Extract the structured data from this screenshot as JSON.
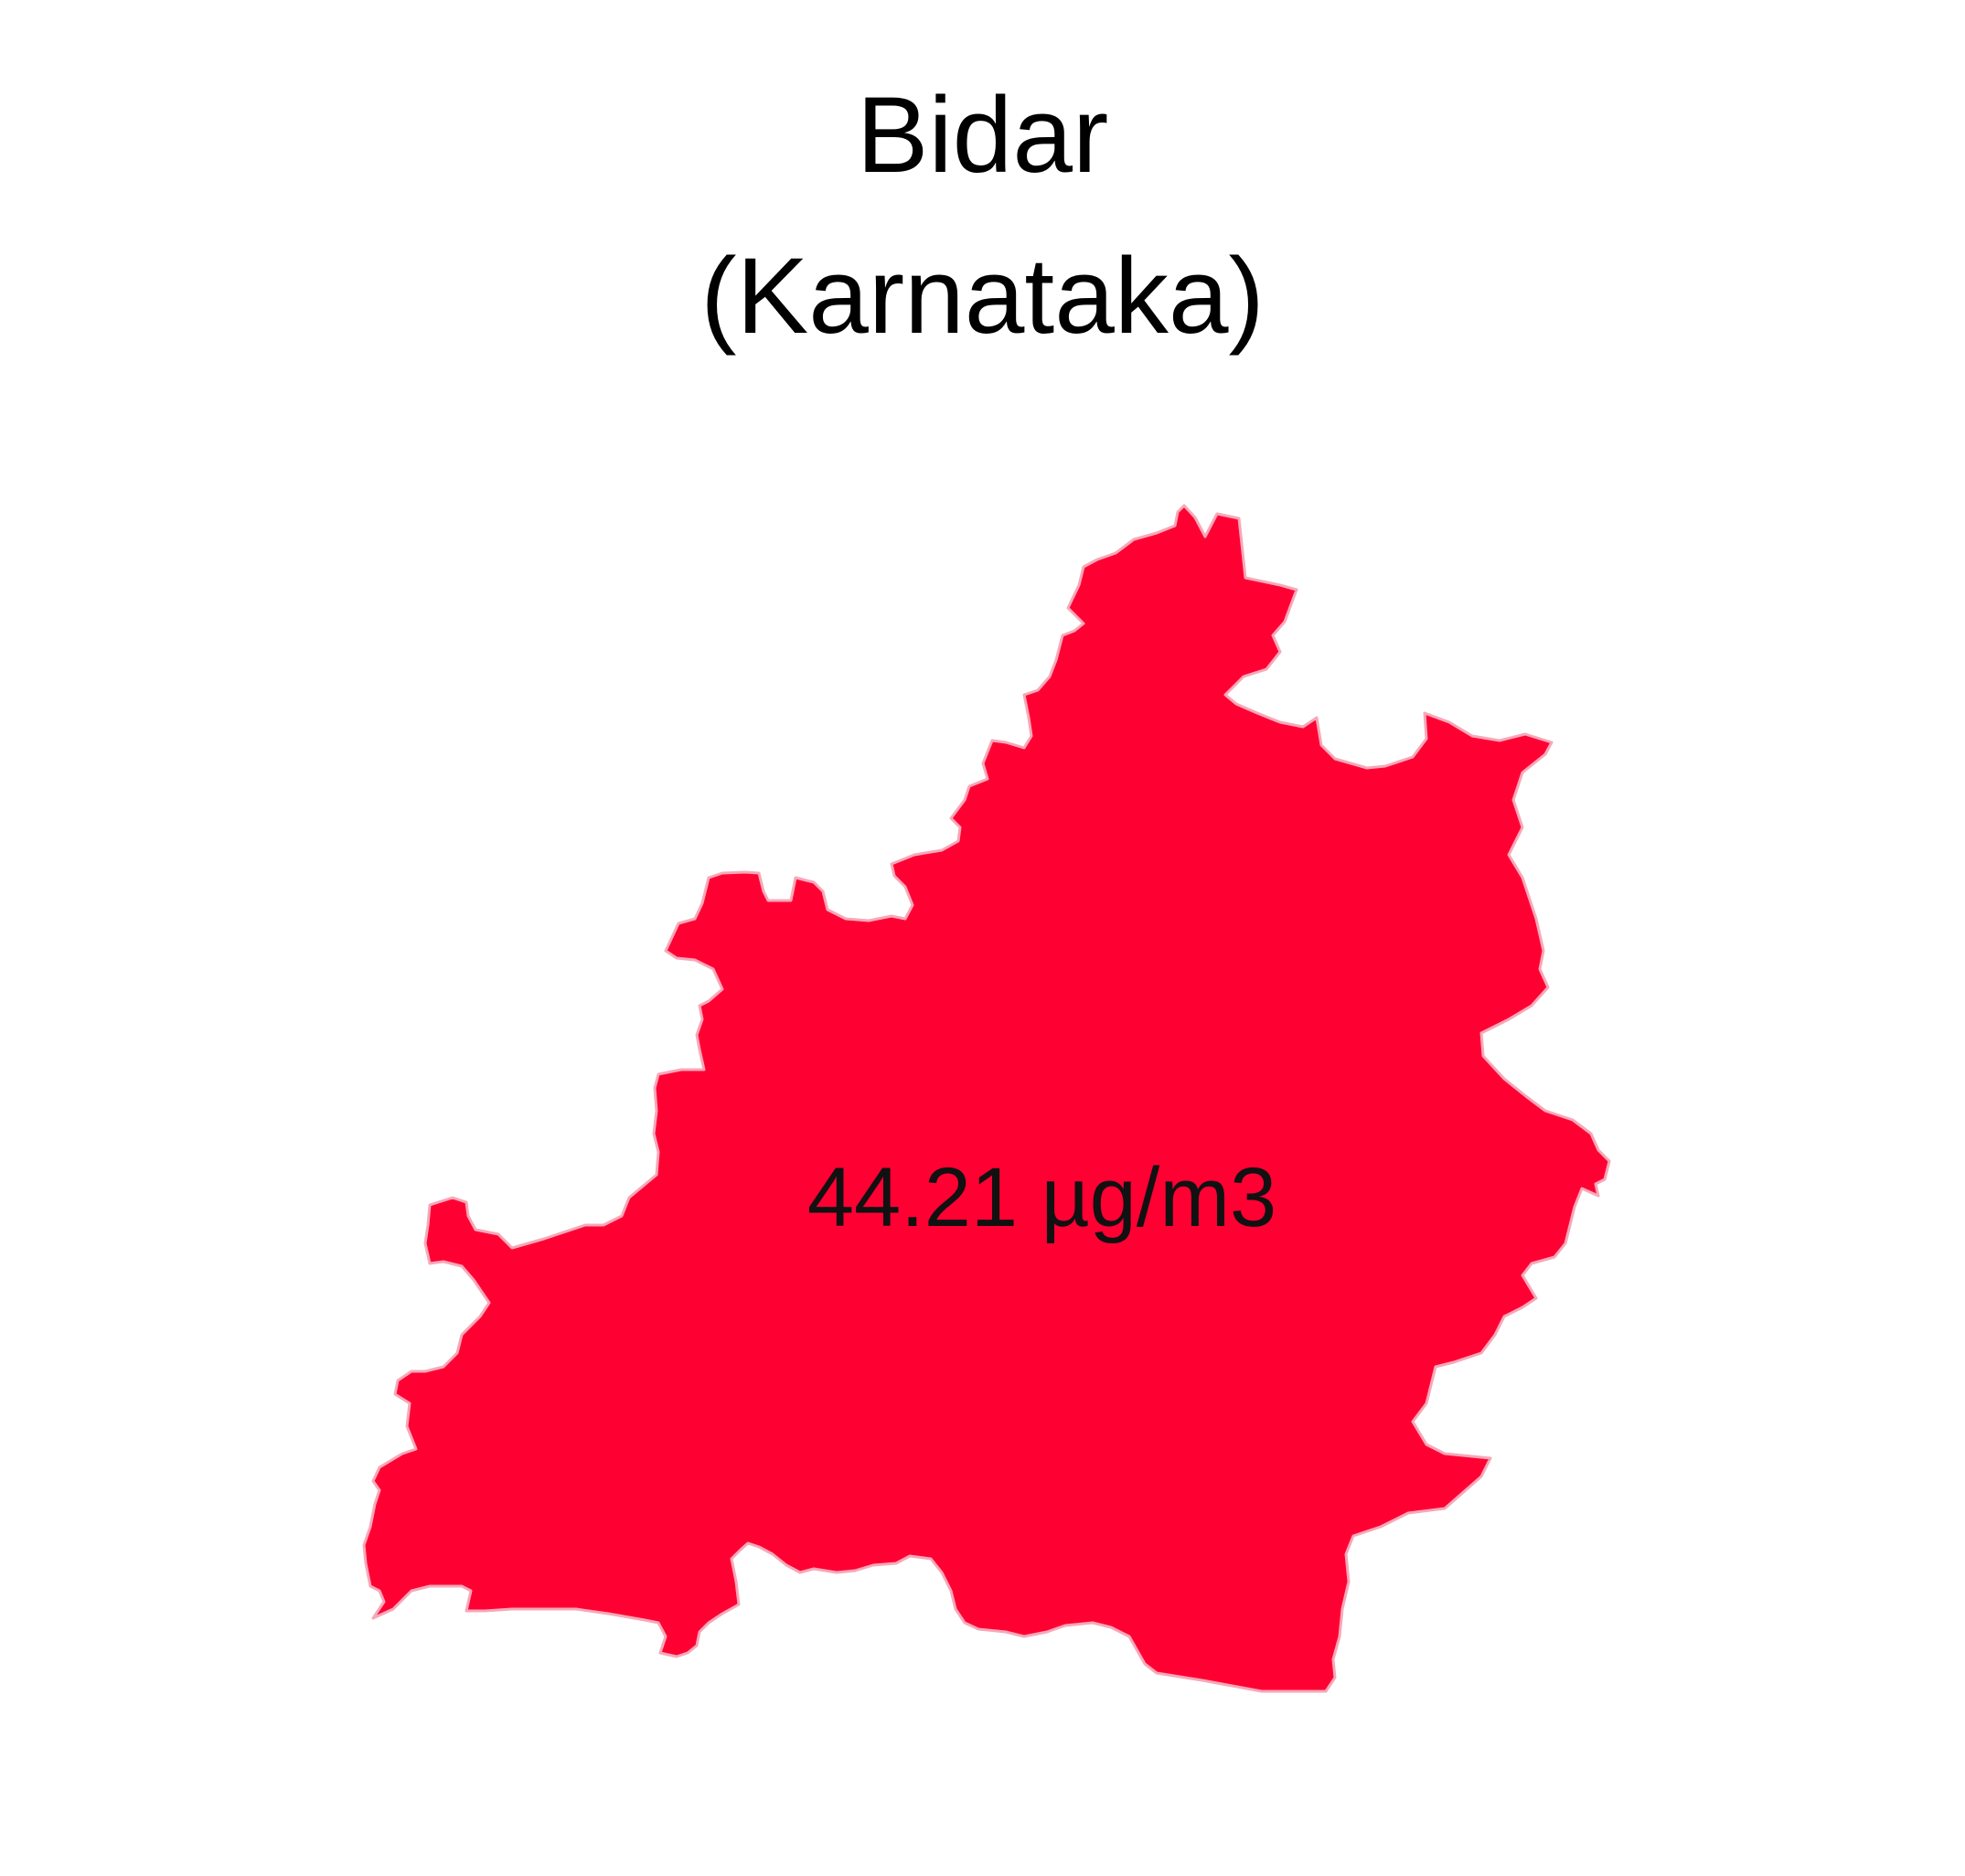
{
  "title": {
    "district": "Bidar",
    "state": "(Karnataka)"
  },
  "region": {
    "value_label": "44.21 µg/m3",
    "fill_color": "#FF0033",
    "stroke_color": "#F6A8B8"
  }
}
